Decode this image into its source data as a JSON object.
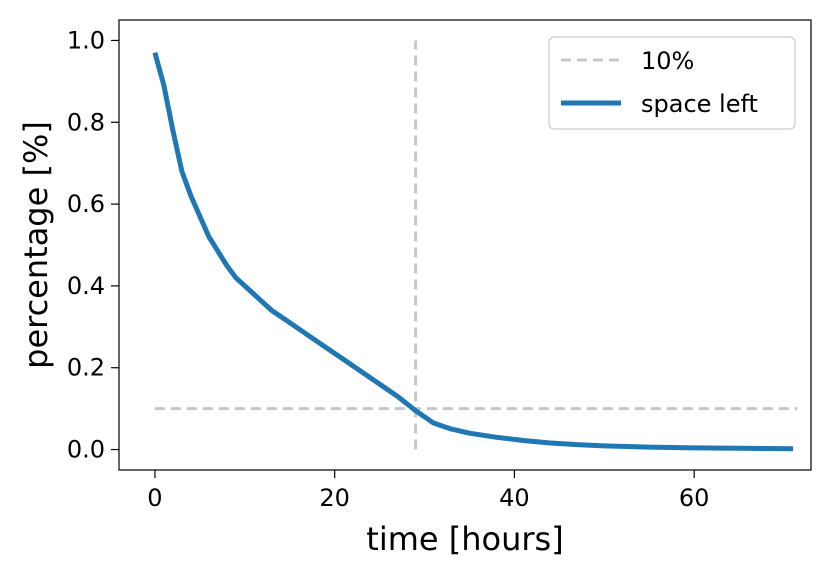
{
  "chart_data": {
    "type": "line",
    "xlabel": "time [hours]",
    "ylabel": "percentage [%]",
    "xlim": [
      -4,
      73
    ],
    "ylim": [
      -0.05,
      1.05
    ],
    "x_ticks": [
      0,
      20,
      40,
      60
    ],
    "x_tick_labels": [
      "0",
      "20",
      "40",
      "60"
    ],
    "y_ticks": [
      0.0,
      0.2,
      0.4,
      0.6,
      0.8,
      1.0
    ],
    "y_tick_labels": [
      "0.0",
      "0.2",
      "0.4",
      "0.6",
      "0.8",
      "1.0"
    ],
    "grid": false,
    "legend_position": "top-right",
    "series": [
      {
        "name": "space left",
        "color": "#1f77b4",
        "style": "solid",
        "x": [
          0,
          1,
          2,
          3,
          4,
          5,
          6,
          8,
          9,
          11,
          13,
          15,
          17,
          19,
          21,
          23,
          25,
          27,
          29,
          31,
          33,
          35,
          38,
          41,
          44,
          47,
          50,
          55,
          60,
          65,
          71
        ],
        "y": [
          0.97,
          0.89,
          0.78,
          0.68,
          0.62,
          0.57,
          0.52,
          0.45,
          0.42,
          0.38,
          0.34,
          0.31,
          0.28,
          0.25,
          0.22,
          0.19,
          0.16,
          0.13,
          0.095,
          0.065,
          0.05,
          0.04,
          0.03,
          0.022,
          0.016,
          0.012,
          0.009,
          0.006,
          0.004,
          0.003,
          0.002
        ]
      },
      {
        "name": "10%",
        "color": "#c8c8c8",
        "style": "dashed",
        "x": [
          0,
          71.5
        ],
        "y": [
          0.1,
          0.1
        ]
      }
    ],
    "annotations": [
      {
        "type": "vline",
        "x": 29,
        "y_range": [
          0,
          1.0
        ],
        "color": "#c8c8c8",
        "style": "dashed"
      }
    ]
  }
}
